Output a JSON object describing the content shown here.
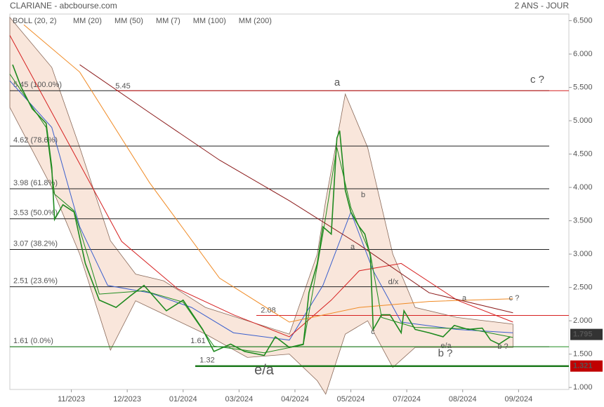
{
  "chart_data": {
    "type": "line",
    "title": "CLARIANE - abcbourse.com",
    "subtitle": "2 ANS - JOUR",
    "xlim": [
      0,
      200
    ],
    "xticks": [
      {
        "value": 22,
        "label": "11/2023"
      },
      {
        "value": 42,
        "label": "12/2023"
      },
      {
        "value": 62,
        "label": "01/2024"
      },
      {
        "value": 82,
        "label": "03/2024"
      },
      {
        "value": 102,
        "label": "04/2024"
      },
      {
        "value": 122,
        "label": "05/2024"
      },
      {
        "value": 142,
        "label": "07/2024"
      },
      {
        "value": 162,
        "label": "08/2024"
      },
      {
        "value": 182,
        "label": "09/2024"
      }
    ],
    "ylim": [
      0.97,
      6.6
    ],
    "yticks": [
      {
        "value": 1.0,
        "label": "1.000"
      },
      {
        "value": 1.5,
        "label": "1.500"
      },
      {
        "value": 2.0,
        "label": "2.000"
      },
      {
        "value": 2.5,
        "label": "2.500"
      },
      {
        "value": 3.0,
        "label": "3.000"
      },
      {
        "value": 3.5,
        "label": "3.500"
      },
      {
        "value": 4.0,
        "label": "4.000"
      },
      {
        "value": 4.5,
        "label": "4.500"
      },
      {
        "value": 5.0,
        "label": "5.000"
      },
      {
        "value": 5.5,
        "label": "5.500"
      },
      {
        "value": 6.0,
        "label": "6.000"
      },
      {
        "value": 6.5,
        "label": "6.500"
      }
    ],
    "band": {
      "name": "BOLL (20, 2)",
      "color": "#f5d5c3",
      "x": [
        0,
        15,
        25,
        36,
        45,
        55,
        70,
        85,
        100,
        110,
        113,
        120,
        128,
        137,
        145,
        160,
        180
      ],
      "upper": [
        6.55,
        5.8,
        4.6,
        3.2,
        2.7,
        2.6,
        2.2,
        2.0,
        1.8,
        3.0,
        3.8,
        5.4,
        4.6,
        3.0,
        2.2,
        2.05,
        1.95
      ],
      "lower": [
        5.2,
        4.0,
        3.0,
        1.56,
        2.3,
        2.1,
        1.8,
        1.45,
        1.5,
        1.1,
        0.9,
        1.8,
        2.0,
        1.3,
        1.6,
        1.6,
        1.6
      ]
    },
    "series": [
      {
        "name": "MM (20)",
        "color": "#3a5fcd",
        "x": [
          0,
          15,
          25,
          35,
          50,
          65,
          80,
          100,
          112,
          122,
          130,
          140,
          160,
          180
        ],
        "values": [
          5.6,
          4.9,
          3.41,
          2.53,
          2.42,
          2.2,
          1.82,
          1.71,
          2.53,
          3.63,
          2.75,
          1.98,
          1.87,
          1.82
        ]
      },
      {
        "name": "MM (50)",
        "color": "#d62020",
        "x": [
          0,
          20,
          40,
          60,
          80,
          100,
          115,
          125,
          140,
          160,
          180
        ],
        "values": [
          6.28,
          4.74,
          3.19,
          2.48,
          2.09,
          1.76,
          2.31,
          2.75,
          2.86,
          2.31,
          1.98
        ]
      },
      {
        "name": "MM (7)",
        "color": "#1e8c1e",
        "x": [
          0,
          13,
          16,
          23,
          32,
          48,
          62,
          73,
          91,
          105,
          112,
          117,
          122,
          129,
          133,
          145,
          164,
          180
        ],
        "values": [
          5.7,
          4.9,
          3.9,
          3.65,
          2.4,
          2.45,
          2.28,
          1.62,
          1.52,
          1.64,
          3.3,
          4.6,
          3.7,
          3.0,
          2.05,
          1.9,
          1.88,
          1.75
        ]
      },
      {
        "name": "MM (100)",
        "color": "#f08a24",
        "x": [
          5,
          25,
          50,
          75,
          100,
          125,
          150,
          180
        ],
        "values": [
          6.44,
          5.73,
          4.07,
          2.64,
          1.98,
          2.2,
          2.29,
          2.33
        ]
      },
      {
        "name": "MM (200)",
        "color": "#8b1a1a",
        "x": [
          25,
          50,
          75,
          100,
          125,
          150,
          180
        ],
        "values": [
          5.84,
          5.12,
          4.41,
          3.8,
          3.14,
          2.42,
          2.12
        ]
      },
      {
        "name": "CLARIANE",
        "color": "#1f8a1f",
        "x": [
          1,
          4,
          8,
          13,
          15,
          16,
          19,
          23,
          27,
          32,
          38,
          43,
          48,
          56,
          62,
          69,
          73,
          79,
          84,
          91,
          95,
          100,
          105,
          107,
          110,
          112,
          115,
          117,
          118,
          120,
          122,
          125,
          127,
          129,
          130,
          133,
          136,
          140,
          141,
          145,
          150,
          155,
          159,
          164,
          169,
          172,
          175,
          179
        ],
        "values": [
          5.84,
          5.51,
          5.18,
          4.96,
          4.3,
          3.52,
          3.74,
          3.63,
          2.86,
          2.31,
          2.2,
          2.37,
          2.53,
          2.15,
          2.31,
          1.87,
          1.54,
          1.65,
          1.54,
          1.48,
          1.76,
          1.6,
          1.65,
          2.42,
          2.86,
          3.41,
          3.3,
          4.74,
          4.85,
          3.96,
          3.63,
          3.41,
          3.3,
          2.97,
          1.87,
          2.09,
          2.09,
          1.82,
          2.15,
          1.87,
          1.82,
          1.76,
          1.93,
          1.87,
          1.89,
          1.71,
          1.65,
          1.76
        ]
      }
    ],
    "fib_levels": [
      {
        "value": 5.45,
        "label": "5.45 (100.0%)"
      },
      {
        "value": 4.62,
        "label": "4.62 (78.6%)"
      },
      {
        "value": 3.98,
        "label": "3.98 (61.8%)"
      },
      {
        "value": 3.53,
        "label": "3.53 (50.0%)"
      },
      {
        "value": 3.07,
        "label": "3.07 (38.2%)"
      },
      {
        "value": 2.51,
        "label": "2.51 (23.6%)"
      },
      {
        "value": 1.61,
        "label": "1.61 (0.0%)"
      }
    ],
    "levels": [
      {
        "value": 5.45,
        "label": "5.45",
        "color": "#d62020"
      },
      {
        "value": 2.08,
        "label": "2.08",
        "color": "#d62020"
      },
      {
        "value": 1.61,
        "label": "1.61",
        "color": "#1e8c1e"
      },
      {
        "value": 1.32,
        "label": "1.32",
        "color": "#1e7a1e"
      }
    ],
    "last_prices": [
      {
        "value": 1.795,
        "color": "#333"
      },
      {
        "value": 1.321,
        "color": "#c00000"
      }
    ],
    "annotations": [
      "a",
      "c ?",
      "b",
      "a",
      "d/x",
      "c",
      "e/a",
      "b ?",
      "a",
      "c ?",
      "e/a",
      "b ?"
    ]
  }
}
